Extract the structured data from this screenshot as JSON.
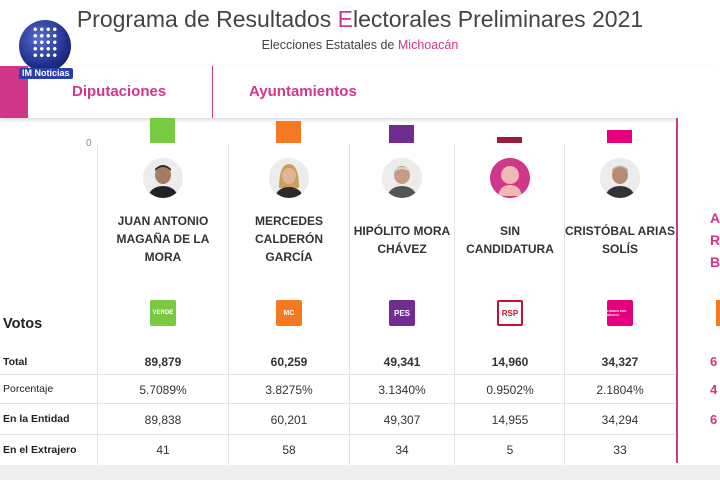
{
  "header": {
    "title_pre": "Programa de Resultados ",
    "title_hl": "E",
    "title_post": "lectorales Preliminares 2021",
    "subtitle_pre": "Elecciones Estatales de ",
    "subtitle_state": "Michoacán",
    "logo_label": "IM Noticias"
  },
  "tabs": [
    {
      "label": "Diputaciones"
    },
    {
      "label": "Ayuntamientos"
    }
  ],
  "chart_zero": "0",
  "votes_heading": "Votos",
  "row_labels": {
    "total": "Total",
    "porcentaje": "Porcentaje",
    "entidad": "En la Entidad",
    "extranjero": "En el Extrajero"
  },
  "candidates": [
    {
      "name": "JUAN ANTONIO MAGAÑA DE LA MORA",
      "party": "VERDE",
      "color": "#7ac943",
      "total": "89,879",
      "porcentaje": "5.7089%",
      "entidad": "89,838",
      "extranjero": "41"
    },
    {
      "name": "MERCEDES CALDERÓN GARCÍA",
      "party": "MC",
      "color": "#f47920",
      "total": "60,259",
      "porcentaje": "3.8275%",
      "entidad": "60,201",
      "extranjero": "58"
    },
    {
      "name": "HIPÓLITO MORA CHÁVEZ",
      "party": "PES",
      "color": "#6f2c91",
      "total": "49,341",
      "porcentaje": "3.1340%",
      "entidad": "49,307",
      "extranjero": "34"
    },
    {
      "name": "SIN CANDIDATURA",
      "party": "RSP",
      "color": "#9b1c3a",
      "total": "14,960",
      "porcentaje": "0.9502%",
      "entidad": "14,955",
      "extranjero": "5"
    },
    {
      "name": "CRISTÓBAL ARIAS SOLÍS",
      "party": "FUERZA POR MÉXICO",
      "color": "#e6007e",
      "total": "34,327",
      "porcentaje": "2.1804%",
      "entidad": "34,294",
      "extranjero": "33"
    }
  ],
  "right_panel": {
    "letters": [
      "A",
      "R",
      "B"
    ],
    "partial_values": [
      "6",
      "4",
      "6"
    ]
  }
}
